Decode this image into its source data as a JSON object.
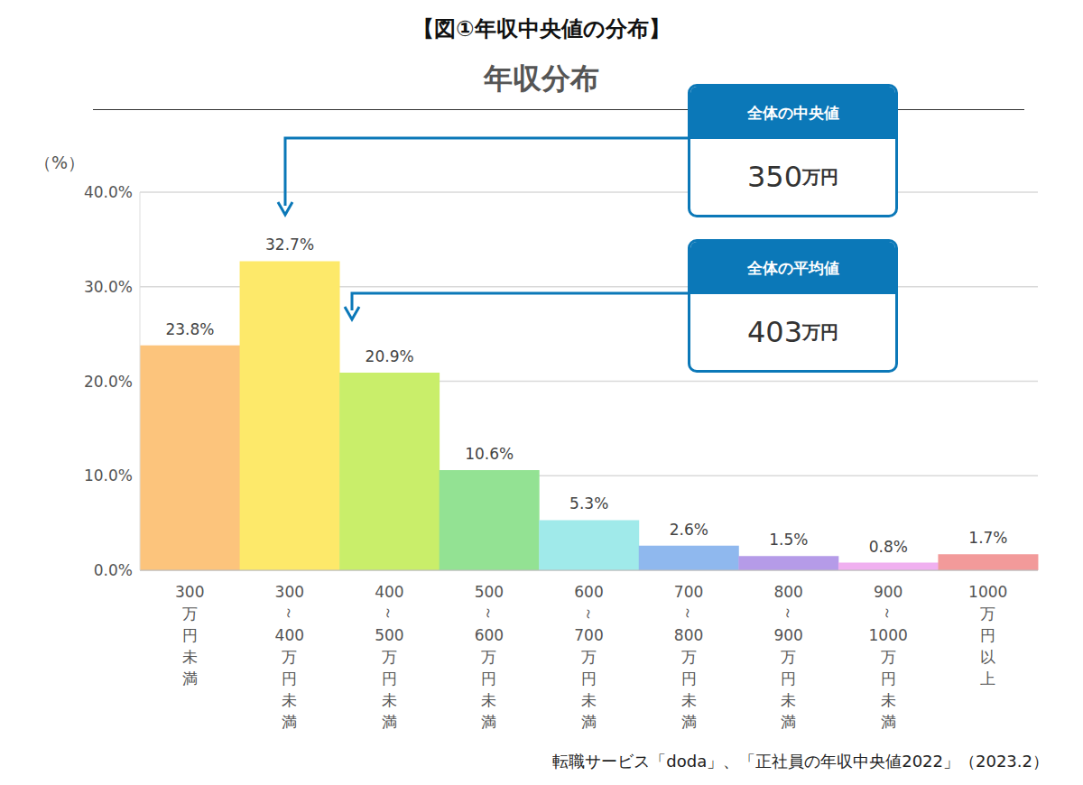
{
  "chart_data": {
    "type": "bar",
    "title": "【図①年収中央値の分布】",
    "subtitle": "年収分布",
    "y_label": "（%）",
    "categories": [
      "300万円未満",
      "300～400万円未満",
      "400～500万円未満",
      "500～600万円未満",
      "600～700万円未満",
      "700～800万円未満",
      "800～900万円未満",
      "900～1000万円未満",
      "1000万円以上"
    ],
    "values": [
      23.8,
      32.7,
      20.9,
      10.6,
      5.3,
      2.6,
      1.5,
      0.8,
      1.7
    ],
    "value_labels": [
      "23.8%",
      "32.7%",
      "20.9%",
      "10.6%",
      "5.3%",
      "2.6%",
      "1.5%",
      "0.8%",
      "1.7%"
    ],
    "colors": [
      "#fcc47c",
      "#fde96a",
      "#c9ee6a",
      "#93e293",
      "#a0eaea",
      "#8fb8ee",
      "#b59be8",
      "#f0b0f0",
      "#f29a9a"
    ],
    "ylim": [
      0,
      40
    ],
    "yticks": [
      {
        "value": 0,
        "label": "0.0%"
      },
      {
        "value": 10,
        "label": "10.0%"
      },
      {
        "value": 20,
        "label": "20.0%"
      },
      {
        "value": 30,
        "label": "30.0%"
      },
      {
        "value": 40,
        "label": "40.0%"
      }
    ],
    "grid": true,
    "data_labels": true,
    "annotations": [
      {
        "label": "全体の中央値",
        "text": "350万円"
      },
      {
        "label": "全体の平均値",
        "text": "403万円"
      }
    ],
    "source": "転職サービス「doda」、「正社員の年収中央値2022」（2023.2）"
  }
}
